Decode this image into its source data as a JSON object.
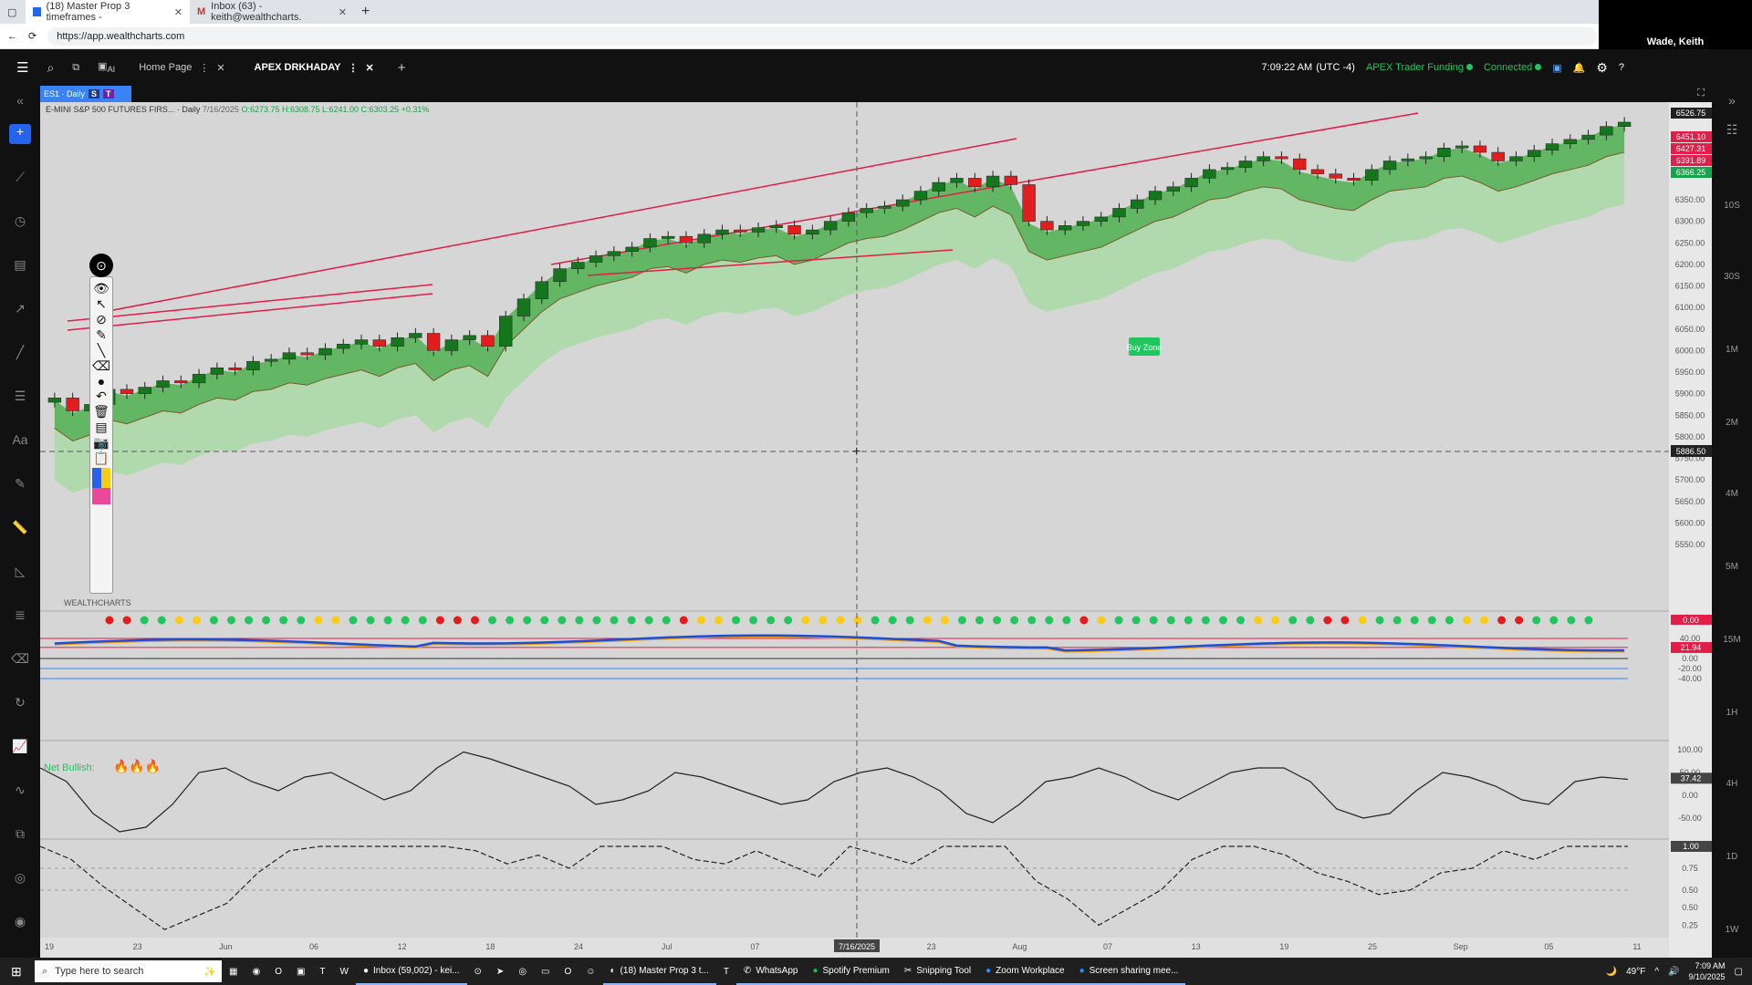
{
  "browser": {
    "tabs": [
      {
        "label": "(18) Master Prop 3 timeframes - "
      },
      {
        "label": "Inbox (63) - keith@wealthcharts."
      }
    ],
    "url": "https://app.wealthcharts.com",
    "user": "Wade, Keith"
  },
  "app": {
    "tabs": [
      {
        "label": "Home Page"
      },
      {
        "label": "APEX DRKHADAY"
      }
    ],
    "time": "7:09:22 AM",
    "timezone": "(UTC -4)",
    "account": "APEX Trader Funding",
    "status": "Connected",
    "ai_label": "AI"
  },
  "chart_header": {
    "symbol_tab": "ES1 · Daily",
    "badges": [
      "S",
      "T"
    ],
    "instrument": "E-MINI S&P 500 FUTURES FIRS... · Daily",
    "date": "7/16/2025",
    "ohlc": "O:6273.75 H:6308.75 L:6241.00 C:6303.25 +0.31%",
    "brand": "WEALTHCHARTS",
    "annotation": "Buy Zone",
    "indicator_label": "Net Bullish:",
    "crosshair_price": "5886.50",
    "crosshair_date": "7/16/2025"
  },
  "timeframes": [
    "10S",
    "30S",
    "1M",
    "2M",
    "4M",
    "5M",
    "15M",
    "1H",
    "4H",
    "1D",
    "1W"
  ],
  "taskbar": {
    "search_placeholder": "Type here to search",
    "items": [
      {
        "label": "Inbox (59,002) - kei..."
      },
      {
        "label": "(18) Master Prop 3 t..."
      },
      {
        "label": "WhatsApp"
      },
      {
        "label": "Spotify Premium"
      },
      {
        "label": "Snipping Tool"
      },
      {
        "label": "Zoom Workplace"
      },
      {
        "label": "Screen sharing mee..."
      }
    ],
    "weather": "49°F",
    "clock_time": "7:09 AM",
    "clock_date": "9/10/2025"
  },
  "chart_data": {
    "type": "candlestick",
    "y_ticks": [
      "6350.00",
      "6300.00",
      "6250.00",
      "6200.00",
      "6150.00",
      "6100.00",
      "6050.00",
      "6000.00",
      "5950.00",
      "5900.00",
      "5850.00",
      "5800.00",
      "5750.00",
      "5700.00",
      "5650.00",
      "5600.00",
      "5550.00"
    ],
    "price_labels": [
      {
        "text": "6526.75",
        "color": "#222222"
      },
      {
        "text": "6451.10",
        "color": "#e11d48"
      },
      {
        "text": "6427.31",
        "color": "#e11d48"
      },
      {
        "text": "6391.89",
        "color": "#e11d48"
      },
      {
        "text": "6366.25",
        "color": "#16a34a"
      }
    ],
    "x_labels": [
      "19",
      "23",
      "Jun",
      "06",
      "12",
      "18",
      "24",
      "Jul",
      "07",
      "11",
      "23",
      "Aug",
      "07",
      "13",
      "19",
      "25",
      "Sep",
      "05",
      "11"
    ],
    "closes": [
      5890,
      5860,
      5875,
      5910,
      5900,
      5915,
      5930,
      5925,
      5945,
      5960,
      5955,
      5975,
      5980,
      5995,
      5990,
      6005,
      6015,
      6025,
      6010,
      6030,
      6040,
      6000,
      6025,
      6035,
      6010,
      6080,
      6120,
      6160,
      6190,
      6205,
      6220,
      6230,
      6240,
      6260,
      6265,
      6250,
      6270,
      6280,
      6275,
      6285,
      6290,
      6270,
      6280,
      6300,
      6320,
      6330,
      6335,
      6350,
      6370,
      6390,
      6400,
      6380,
      6405,
      6385,
      6300,
      6280,
      6290,
      6300,
      6310,
      6330,
      6350,
      6370,
      6380,
      6400,
      6420,
      6425,
      6440,
      6450,
      6445,
      6420,
      6410,
      6400,
      6395,
      6420,
      6440,
      6445,
      6450,
      6470,
      6475,
      6460,
      6440,
      6450,
      6465,
      6480,
      6490,
      6500,
      6520,
      6530
    ],
    "rsi_dots": [
      "r",
      "r",
      "g",
      "g",
      "y",
      "y",
      "g",
      "g",
      "g",
      "g",
      "g",
      "g",
      "y",
      "y",
      "g",
      "g",
      "g",
      "g",
      "g",
      "r",
      "r",
      "r",
      "g",
      "g",
      "g",
      "g",
      "g",
      "g",
      "g",
      "g",
      "g",
      "g",
      "g",
      "r",
      "y",
      "y",
      "g",
      "g",
      "g",
      "g",
      "y",
      "y",
      "y",
      "y",
      "g",
      "g",
      "g",
      "y",
      "y",
      "g",
      "g",
      "g",
      "g",
      "g",
      "g",
      "g",
      "r",
      "y",
      "g",
      "g",
      "g",
      "g",
      "g",
      "g",
      "g",
      "g",
      "y",
      "y",
      "g",
      "g",
      "r",
      "r",
      "y",
      "g",
      "g",
      "g",
      "g",
      "g",
      "y",
      "y",
      "r",
      "r",
      "g",
      "g",
      "g",
      "g"
    ],
    "indicator_levels": [
      "40.00",
      "20.00",
      "0.00",
      "-20.00",
      "-40.00"
    ],
    "indicator_value": "21.94",
    "rsi_value": "0.00",
    "osc_levels": [
      "100.00",
      "50.00",
      "0.00",
      "-50.00"
    ],
    "osc_value": "37.42",
    "osc_values": [
      60,
      30,
      -40,
      -80,
      -70,
      -20,
      50,
      60,
      30,
      10,
      40,
      50,
      20,
      -10,
      10,
      60,
      95,
      80,
      60,
      40,
      20,
      -20,
      -10,
      10,
      50,
      40,
      20,
      0,
      -20,
      -10,
      30,
      50,
      60,
      40,
      10,
      -40,
      -60,
      -20,
      30,
      40,
      60,
      40,
      10,
      -10,
      20,
      50,
      60,
      60,
      30,
      -30,
      -50,
      -40,
      10,
      50,
      40,
      20,
      -10,
      -20,
      30,
      40,
      35
    ],
    "prob_levels": [
      "1.00",
      "0.75",
      "0.50",
      "0.50",
      "0.25"
    ],
    "prob_value": "1.00",
    "prob_values": [
      1.0,
      0.85,
      0.55,
      0.3,
      0.05,
      0.2,
      0.35,
      0.7,
      0.95,
      1.0,
      1.0,
      1.0,
      1.0,
      1.0,
      0.95,
      0.8,
      0.9,
      0.75,
      1.0,
      1.0,
      1.0,
      0.85,
      0.8,
      0.95,
      0.8,
      0.65,
      1.0,
      0.9,
      0.8,
      1.0,
      1.0,
      1.0,
      0.6,
      0.4,
      0.1,
      0.3,
      0.5,
      0.85,
      1.0,
      1.0,
      0.9,
      0.7,
      0.6,
      0.45,
      0.5,
      0.7,
      0.75,
      0.95,
      0.85,
      1.0,
      1.0,
      1.0
    ]
  }
}
